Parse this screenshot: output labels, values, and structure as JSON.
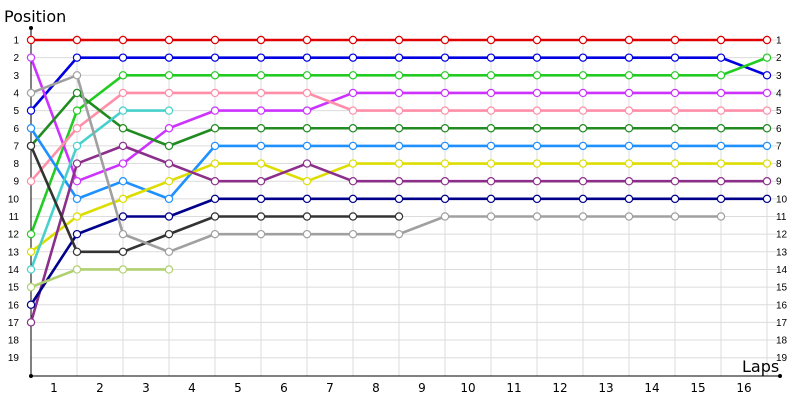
{
  "chart_data": {
    "type": "line",
    "title": "Position",
    "ylabel": "Position",
    "xlabel": "Laps",
    "x_ticks": [
      "1",
      "2",
      "3",
      "4",
      "5",
      "6",
      "7",
      "8",
      "9",
      "10",
      "11",
      "12",
      "13",
      "14",
      "15",
      "16"
    ],
    "y_ticks": [
      "1",
      "2",
      "3",
      "4",
      "5",
      "6",
      "7",
      "8",
      "9",
      "10",
      "11",
      "12",
      "13",
      "14",
      "15",
      "16",
      "17",
      "18",
      "19"
    ],
    "xlim": [
      0,
      16.5
    ],
    "ylim": [
      1,
      19
    ],
    "grid": true,
    "y_inverted": true,
    "series": [
      {
        "color": "#e00000",
        "x": [
          0,
          1,
          2,
          3,
          4,
          5,
          6,
          7,
          8,
          9,
          10,
          11,
          12,
          13,
          14,
          15,
          16
        ],
        "y": [
          1,
          1,
          1,
          1,
          1,
          1,
          1,
          1,
          1,
          1,
          1,
          1,
          1,
          1,
          1,
          1,
          1
        ]
      },
      {
        "color": "#0000e0",
        "x": [
          0,
          1,
          2,
          3,
          4,
          5,
          6,
          7,
          8,
          9,
          10,
          11,
          12,
          13,
          14,
          15,
          16
        ],
        "y": [
          5,
          2,
          2,
          2,
          2,
          2,
          2,
          2,
          2,
          2,
          2,
          2,
          2,
          2,
          2,
          2,
          3
        ]
      },
      {
        "color": "#22cc22",
        "x": [
          0,
          1,
          2,
          3,
          4,
          5,
          6,
          7,
          8,
          9,
          10,
          11,
          12,
          13,
          14,
          15,
          16
        ],
        "y": [
          12,
          5,
          3,
          3,
          3,
          3,
          3,
          3,
          3,
          3,
          3,
          3,
          3,
          3,
          3,
          3,
          2
        ]
      },
      {
        "color": "#cc33ff",
        "x": [
          0,
          1,
          2,
          3,
          4,
          5,
          6,
          7,
          8,
          9,
          10,
          11,
          12,
          13,
          14,
          15,
          16
        ],
        "y": [
          2,
          9,
          8,
          6,
          5,
          5,
          5,
          4,
          4,
          4,
          4,
          4,
          4,
          4,
          4,
          4,
          4
        ]
      },
      {
        "color": "#ff8fa8",
        "x": [
          0,
          1,
          2,
          3,
          4,
          5,
          6,
          7,
          8,
          9,
          10,
          11,
          12,
          13,
          14,
          15,
          16
        ],
        "y": [
          9,
          6,
          4,
          4,
          4,
          4,
          4,
          5,
          5,
          5,
          5,
          5,
          5,
          5,
          5,
          5,
          5
        ]
      },
      {
        "color": "#228b22",
        "x": [
          0,
          1,
          2,
          3,
          4,
          5,
          6,
          7,
          8,
          9,
          10,
          11,
          12,
          13,
          14,
          15,
          16
        ],
        "y": [
          7,
          4,
          6,
          7,
          6,
          6,
          6,
          6,
          6,
          6,
          6,
          6,
          6,
          6,
          6,
          6,
          6
        ]
      },
      {
        "color": "#1e90ff",
        "x": [
          0,
          1,
          2,
          3,
          4,
          5,
          6,
          7,
          8,
          9,
          10,
          11,
          12,
          13,
          14,
          15,
          16
        ],
        "y": [
          6,
          10,
          9,
          10,
          7,
          7,
          7,
          7,
          7,
          7,
          7,
          7,
          7,
          7,
          7,
          7,
          7
        ]
      },
      {
        "color": "#dddd00",
        "x": [
          0,
          1,
          2,
          3,
          4,
          5,
          6,
          7,
          8,
          9,
          10,
          11,
          12,
          13,
          14,
          15,
          16
        ],
        "y": [
          13,
          11,
          10,
          9,
          8,
          8,
          9,
          8,
          8,
          8,
          8,
          8,
          8,
          8,
          8,
          8,
          8
        ]
      },
      {
        "color": "#8b2f8b",
        "x": [
          0,
          1,
          2,
          3,
          4,
          5,
          6,
          7,
          8,
          9,
          10,
          11,
          12,
          13,
          14,
          15,
          16
        ],
        "y": [
          17,
          8,
          7,
          8,
          9,
          9,
          8,
          9,
          9,
          9,
          9,
          9,
          9,
          9,
          9,
          9,
          9
        ]
      },
      {
        "color": "#00008b",
        "x": [
          0,
          1,
          2,
          3,
          4,
          5,
          6,
          7,
          8,
          9,
          10,
          11,
          12,
          13,
          14,
          15,
          16
        ],
        "y": [
          16,
          12,
          11,
          11,
          10,
          10,
          10,
          10,
          10,
          10,
          10,
          10,
          10,
          10,
          10,
          10,
          10
        ]
      },
      {
        "color": "#48d1cc",
        "x": [
          0,
          1,
          2,
          3
        ],
        "y": [
          14,
          7,
          5,
          5
        ]
      },
      {
        "color": "#333333",
        "x": [
          0,
          1,
          2,
          3,
          4,
          5,
          6,
          7,
          8
        ],
        "y": [
          7,
          13,
          13,
          12,
          11,
          11,
          11,
          11,
          11
        ]
      },
      {
        "color": "#a0a0a0",
        "x": [
          0,
          1,
          2,
          3,
          4,
          5,
          6,
          7,
          8,
          9,
          10,
          11,
          12,
          13,
          14,
          15
        ],
        "y": [
          4,
          3,
          12,
          13,
          12,
          12,
          12,
          12,
          12,
          11,
          11,
          11,
          11,
          11,
          11,
          11
        ]
      },
      {
        "color": "#b0d070",
        "x": [
          0,
          1,
          2,
          3
        ],
        "y": [
          15,
          14,
          14,
          14
        ]
      }
    ]
  }
}
